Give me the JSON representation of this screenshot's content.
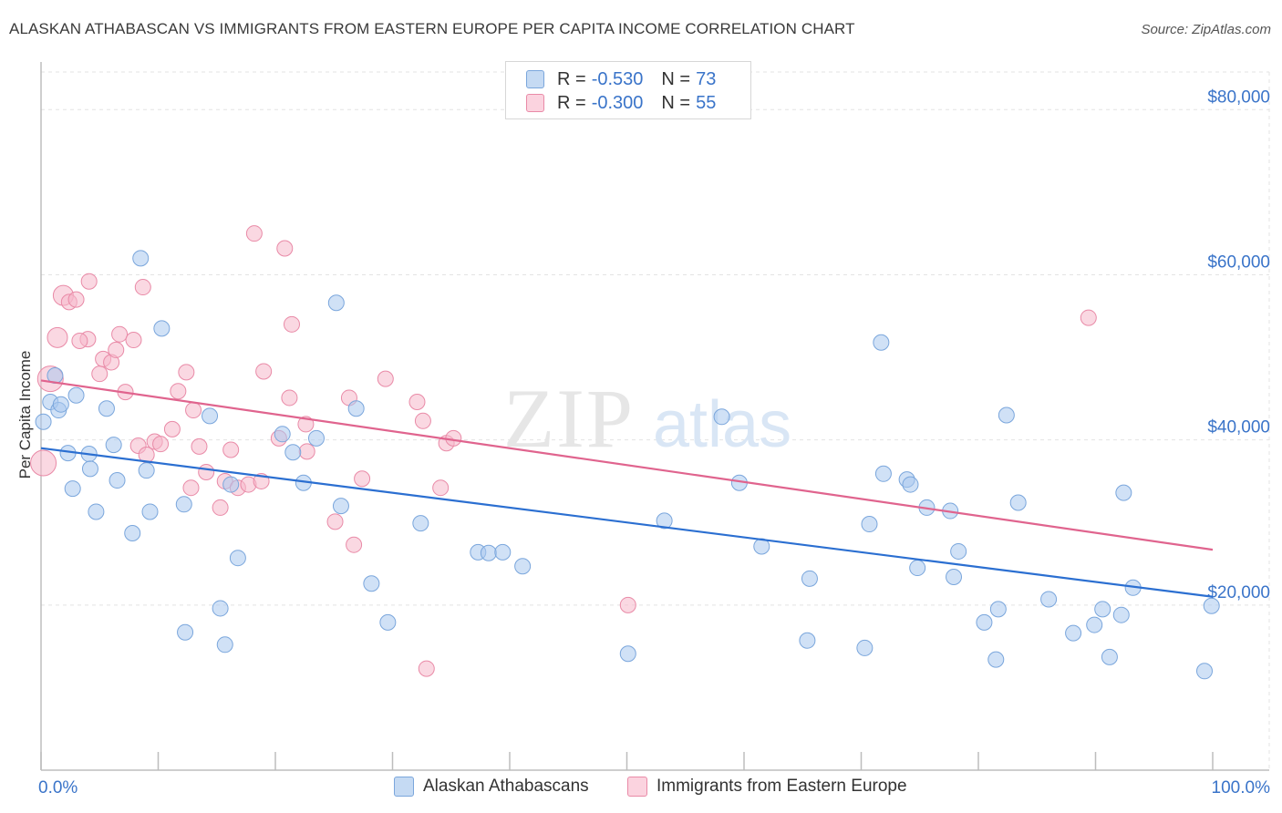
{
  "title": "ALASKAN ATHABASCAN VS IMMIGRANTS FROM EASTERN EUROPE PER CAPITA INCOME CORRELATION CHART",
  "source": "Source: ZipAtlas.com",
  "watermark": {
    "zip": "ZIP",
    "atlas": "atlas"
  },
  "legend": {
    "rows": [
      {
        "r_label": "R = ",
        "r_value": "-0.530",
        "n_label": "N = ",
        "n_value": "73",
        "color": "#a9c8ee"
      },
      {
        "r_label": "R = ",
        "r_value": "-0.300",
        "n_label": "N = ",
        "n_value": "55",
        "color": "#f5b8cb"
      }
    ]
  },
  "bottom_legend": [
    {
      "label": "Alaskan Athabascans",
      "color": "#a9c8ee"
    },
    {
      "label": "Immigrants from Eastern Europe",
      "color": "#f5b8cb"
    }
  ],
  "colors": {
    "blue_fill": "#a9c8ee",
    "blue_stroke": "#7aa6dc",
    "blue_line": "#2b6fd1",
    "pink_fill": "#f5b8cb",
    "pink_stroke": "#e98aa7",
    "pink_line": "#e0648e",
    "tick_label": "#3a74c9",
    "grid": "#e3e3e3"
  },
  "chart_data": {
    "type": "scatter",
    "ylabel": "Per Capita Income",
    "xlabel": "",
    "xlim": [
      0,
      100
    ],
    "ylim": [
      0,
      85000
    ],
    "x_tick_labels": [
      {
        "value": 0,
        "label": "0.0%"
      },
      {
        "value": 100,
        "label": "100.0%"
      }
    ],
    "y_ticks": [
      {
        "value": 20000,
        "label": "$20,000"
      },
      {
        "value": 40000,
        "label": "$40,000"
      },
      {
        "value": 60000,
        "label": "$60,000"
      },
      {
        "value": 80000,
        "label": "$80,000"
      }
    ],
    "grid": "horizontal dashed",
    "series": [
      {
        "name": "Alaskan Athabascans",
        "points": [
          [
            0.2,
            42200
          ],
          [
            0.8,
            44600
          ],
          [
            1.5,
            43600
          ],
          [
            1.7,
            44300
          ],
          [
            3.0,
            45400
          ],
          [
            2.3,
            38400
          ],
          [
            2.7,
            34100
          ],
          [
            4.1,
            38300
          ],
          [
            4.2,
            36500
          ],
          [
            4.7,
            31300
          ],
          [
            5.6,
            43800
          ],
          [
            6.2,
            39400
          ],
          [
            6.5,
            35100
          ],
          [
            7.8,
            28700
          ],
          [
            8.5,
            62000
          ],
          [
            9.0,
            36300
          ],
          [
            9.3,
            31300
          ],
          [
            10.3,
            53500
          ],
          [
            12.2,
            32200
          ],
          [
            12.3,
            16700
          ],
          [
            14.4,
            42900
          ],
          [
            15.3,
            19600
          ],
          [
            15.7,
            15200
          ],
          [
            16.2,
            34600
          ],
          [
            16.8,
            25700
          ],
          [
            20.6,
            40700
          ],
          [
            21.5,
            38500
          ],
          [
            22.4,
            34800
          ],
          [
            23.5,
            40200
          ],
          [
            25.2,
            56600
          ],
          [
            25.6,
            32000
          ],
          [
            26.9,
            43800
          ],
          [
            28.2,
            22600
          ],
          [
            29.6,
            17900
          ],
          [
            32.4,
            29900
          ],
          [
            37.3,
            26400
          ],
          [
            38.2,
            26300
          ],
          [
            39.4,
            26400
          ],
          [
            41.1,
            24700
          ],
          [
            50.1,
            14100
          ],
          [
            53.2,
            30200
          ],
          [
            58.1,
            42800
          ],
          [
            59.6,
            34800
          ],
          [
            61.5,
            27100
          ],
          [
            65.6,
            23200
          ],
          [
            65.4,
            15700
          ],
          [
            70.3,
            14800
          ],
          [
            70.7,
            29800
          ],
          [
            71.7,
            51800
          ],
          [
            71.9,
            35900
          ],
          [
            73.9,
            35200
          ],
          [
            74.2,
            34600
          ],
          [
            74.8,
            24500
          ],
          [
            75.6,
            31800
          ],
          [
            77.6,
            31400
          ],
          [
            77.9,
            23400
          ],
          [
            78.3,
            26500
          ],
          [
            80.5,
            17900
          ],
          [
            81.5,
            13400
          ],
          [
            81.7,
            19500
          ],
          [
            82.4,
            43000
          ],
          [
            83.4,
            32400
          ],
          [
            86.0,
            20700
          ],
          [
            88.1,
            16600
          ],
          [
            89.9,
            17600
          ],
          [
            90.6,
            19500
          ],
          [
            91.2,
            13700
          ],
          [
            92.2,
            18800
          ],
          [
            92.4,
            33600
          ],
          [
            93.2,
            22100
          ],
          [
            99.3,
            12000
          ],
          [
            99.9,
            19900
          ],
          [
            1.2,
            47800
          ]
        ],
        "trend": {
          "x": [
            0,
            100
          ],
          "y": [
            39000,
            21000
          ]
        }
      },
      {
        "name": "Immigrants from Eastern Europe",
        "points": [
          [
            0.2,
            37200
          ],
          [
            0.8,
            47400
          ],
          [
            1.4,
            52400
          ],
          [
            1.9,
            57500
          ],
          [
            2.4,
            56700
          ],
          [
            3.0,
            57000
          ],
          [
            4.0,
            52200
          ],
          [
            4.1,
            59200
          ],
          [
            5.0,
            48000
          ],
          [
            5.3,
            49800
          ],
          [
            6.0,
            49400
          ],
          [
            6.4,
            50900
          ],
          [
            6.7,
            52800
          ],
          [
            7.2,
            45800
          ],
          [
            7.9,
            52100
          ],
          [
            8.3,
            39300
          ],
          [
            8.7,
            58500
          ],
          [
            9.0,
            38200
          ],
          [
            9.7,
            39800
          ],
          [
            10.2,
            39500
          ],
          [
            11.2,
            41300
          ],
          [
            11.7,
            45900
          ],
          [
            12.4,
            48200
          ],
          [
            12.8,
            34200
          ],
          [
            13.0,
            43600
          ],
          [
            13.5,
            39200
          ],
          [
            14.1,
            36100
          ],
          [
            15.3,
            31800
          ],
          [
            15.7,
            35000
          ],
          [
            16.2,
            38800
          ],
          [
            16.8,
            34200
          ],
          [
            17.7,
            34600
          ],
          [
            18.2,
            65000
          ],
          [
            18.8,
            35000
          ],
          [
            19.0,
            48300
          ],
          [
            20.3,
            40200
          ],
          [
            20.8,
            63200
          ],
          [
            21.2,
            45100
          ],
          [
            21.4,
            54000
          ],
          [
            22.6,
            41900
          ],
          [
            22.7,
            38600
          ],
          [
            25.1,
            30100
          ],
          [
            26.3,
            45100
          ],
          [
            26.7,
            27300
          ],
          [
            27.4,
            35300
          ],
          [
            29.4,
            47400
          ],
          [
            32.1,
            44600
          ],
          [
            32.6,
            42300
          ],
          [
            32.9,
            12300
          ],
          [
            34.1,
            34200
          ],
          [
            34.6,
            39600
          ],
          [
            35.2,
            40200
          ],
          [
            50.1,
            20000
          ],
          [
            89.4,
            54800
          ],
          [
            3.3,
            52000
          ]
        ],
        "trend": {
          "x": [
            0,
            100
          ],
          "y": [
            47200,
            26700
          ]
        }
      }
    ]
  }
}
